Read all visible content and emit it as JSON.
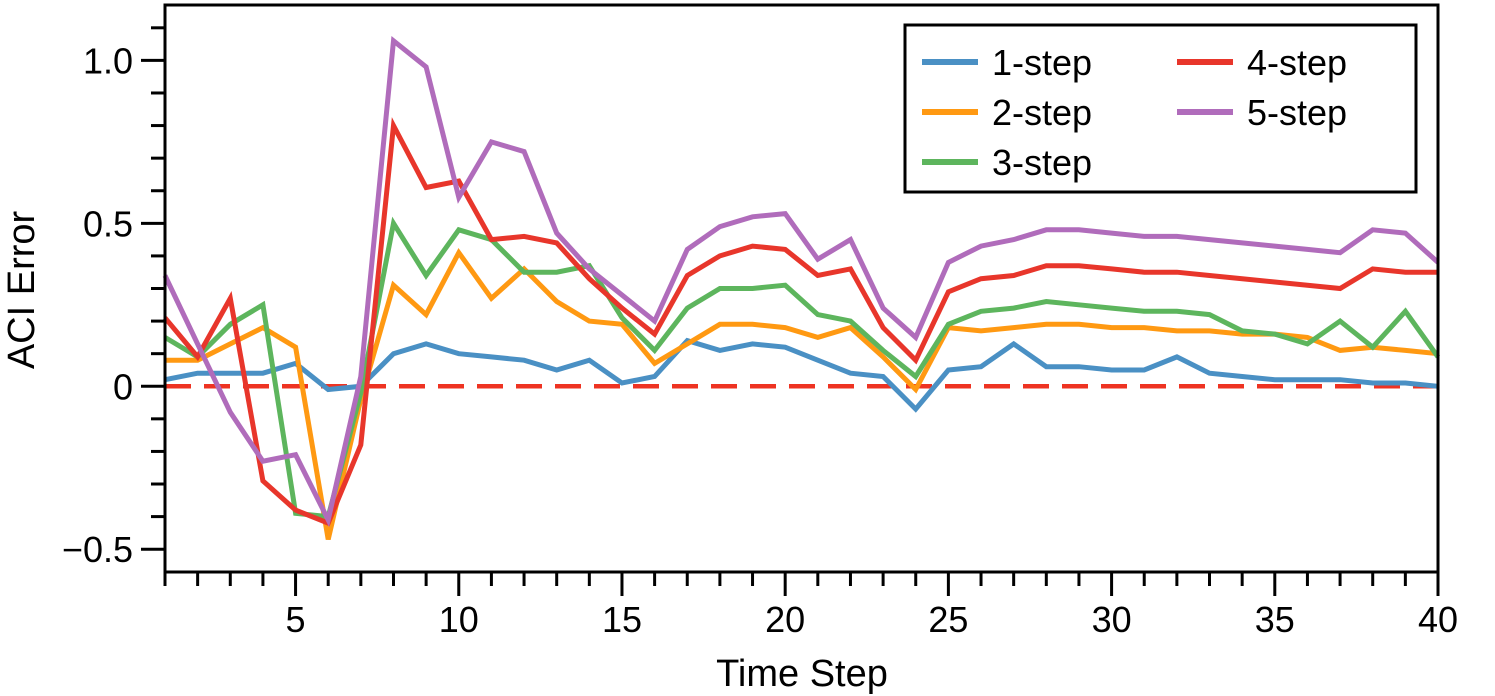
{
  "chart_data": {
    "type": "line",
    "title": "",
    "xlabel": "Time Step",
    "ylabel": "ACI Error",
    "xlim": [
      1,
      40
    ],
    "ylim": [
      -0.57,
      1.17
    ],
    "xticks": [
      5,
      10,
      15,
      20,
      25,
      30,
      35,
      40
    ],
    "xtick_labels": [
      "5",
      "10",
      "15",
      "20",
      "25",
      "30",
      "35",
      "40"
    ],
    "yticks": [
      -0.5,
      0,
      0.5,
      1.0
    ],
    "ytick_labels": [
      "−0.5",
      "0",
      "0.5",
      "1.0"
    ],
    "grid": false,
    "legend": {
      "position": "top-right",
      "columns": 2
    },
    "reference_line": {
      "y": 0,
      "style": "dashed",
      "color": "#ee3322"
    },
    "x": [
      1,
      2,
      3,
      4,
      5,
      6,
      7,
      8,
      9,
      10,
      11,
      12,
      13,
      14,
      15,
      16,
      17,
      18,
      19,
      20,
      21,
      22,
      23,
      24,
      25,
      26,
      27,
      28,
      29,
      30,
      31,
      32,
      33,
      34,
      35,
      36,
      37,
      38,
      39,
      40
    ],
    "series": [
      {
        "name": "1-step",
        "color": "#4a90c4",
        "values": [
          0.02,
          0.04,
          0.04,
          0.04,
          0.07,
          -0.01,
          0.0,
          0.1,
          0.13,
          0.1,
          0.09,
          0.08,
          0.05,
          0.08,
          0.01,
          0.03,
          0.14,
          0.11,
          0.13,
          0.12,
          0.08,
          0.04,
          0.03,
          -0.07,
          0.05,
          0.06,
          0.13,
          0.06,
          0.06,
          0.05,
          0.05,
          0.09,
          0.04,
          0.03,
          0.02,
          0.02,
          0.02,
          0.01,
          0.01,
          0.0
        ]
      },
      {
        "name": "2-step",
        "color": "#ff9912",
        "values": [
          0.08,
          0.08,
          0.13,
          0.18,
          0.12,
          -0.47,
          -0.04,
          0.31,
          0.22,
          0.41,
          0.27,
          0.36,
          0.26,
          0.2,
          0.19,
          0.07,
          0.13,
          0.19,
          0.19,
          0.18,
          0.15,
          0.18,
          0.09,
          -0.01,
          0.18,
          0.17,
          0.18,
          0.19,
          0.19,
          0.18,
          0.18,
          0.17,
          0.17,
          0.16,
          0.16,
          0.15,
          0.11,
          0.12,
          0.11,
          0.1
        ]
      },
      {
        "name": "3-step",
        "color": "#5db55d",
        "values": [
          0.15,
          0.09,
          0.19,
          0.25,
          -0.39,
          -0.4,
          -0.02,
          0.5,
          0.34,
          0.48,
          0.45,
          0.35,
          0.35,
          0.37,
          0.21,
          0.11,
          0.24,
          0.3,
          0.3,
          0.31,
          0.22,
          0.2,
          0.11,
          0.03,
          0.19,
          0.23,
          0.24,
          0.26,
          0.25,
          0.24,
          0.23,
          0.23,
          0.22,
          0.17,
          0.16,
          0.13,
          0.2,
          0.12,
          0.23,
          0.09
        ]
      },
      {
        "name": "4-step",
        "color": "#e8362b",
        "values": [
          0.21,
          0.09,
          0.27,
          -0.29,
          -0.38,
          -0.42,
          -0.18,
          0.8,
          0.61,
          0.63,
          0.45,
          0.46,
          0.44,
          0.33,
          0.24,
          0.16,
          0.34,
          0.4,
          0.43,
          0.42,
          0.34,
          0.36,
          0.18,
          0.08,
          0.29,
          0.33,
          0.34,
          0.37,
          0.37,
          0.36,
          0.35,
          0.35,
          0.34,
          0.33,
          0.32,
          0.31,
          0.3,
          0.36,
          0.35,
          0.35
        ]
      },
      {
        "name": "5-step",
        "color": "#b06cbb",
        "values": [
          0.34,
          0.13,
          -0.08,
          -0.23,
          -0.21,
          -0.41,
          0.03,
          1.06,
          0.98,
          0.58,
          0.75,
          0.72,
          0.47,
          0.36,
          0.28,
          0.2,
          0.42,
          0.49,
          0.52,
          0.53,
          0.39,
          0.45,
          0.24,
          0.15,
          0.38,
          0.43,
          0.45,
          0.48,
          0.48,
          0.47,
          0.46,
          0.46,
          0.45,
          0.44,
          0.43,
          0.42,
          0.41,
          0.48,
          0.47,
          0.38
        ]
      }
    ]
  }
}
